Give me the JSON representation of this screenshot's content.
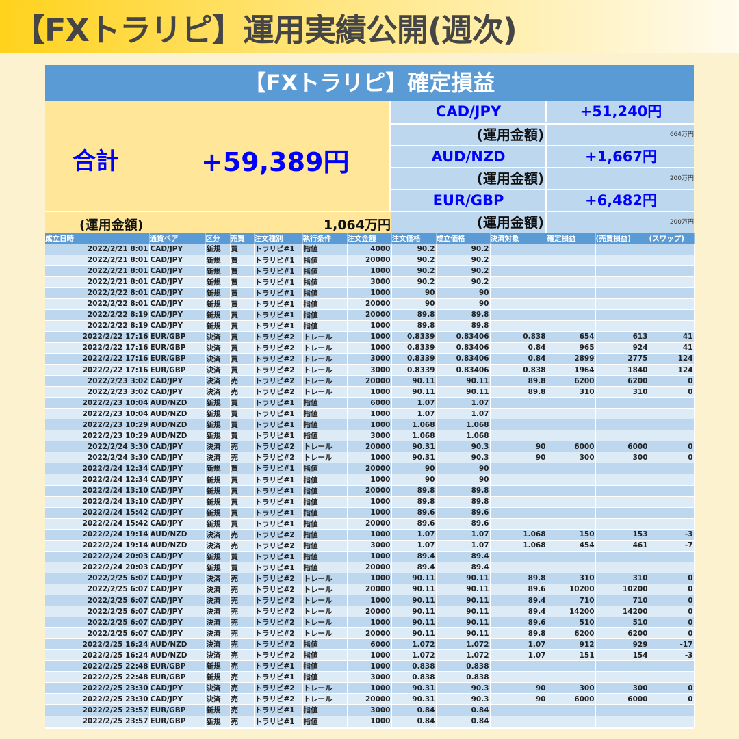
{
  "page_title": "【FXトラリピ】運用実績公開(週次)",
  "sheet": {
    "banner": "【FXトラリピ】確定損益",
    "total_label": "合計",
    "total_value": "+59,389円",
    "fund_label": "(運用金額)",
    "total_fund": "1,064万円",
    "pairs": [
      {
        "pair": "CAD/JPY",
        "profit": "+51,240円",
        "fund_label": "(運用金額)",
        "fund": "664万円"
      },
      {
        "pair": "AUD/NZD",
        "profit": "+1,667円",
        "fund_label": "(運用金額)",
        "fund": "200万円"
      },
      {
        "pair": "EUR/GBP",
        "profit": "+6,482円",
        "fund_label": "(運用金額)",
        "fund": "200万円"
      }
    ]
  },
  "table": {
    "headers": [
      "成立日時",
      "通貨ペア",
      "区分",
      "売買",
      "注文種別",
      "執行条件",
      "注文金額",
      "注文価格",
      "成立価格",
      "決済対象",
      "確定損益",
      "(売買損益)",
      "(スワップ)"
    ],
    "rows": [
      [
        "2022/2/21 8:01",
        "CAD/JPY",
        "新規",
        "買",
        "トラリピ#1",
        "指値",
        "4000",
        "90.2",
        "90.2",
        "",
        "",
        "",
        ""
      ],
      [
        "2022/2/21 8:01",
        "CAD/JPY",
        "新規",
        "買",
        "トラリピ#1",
        "指値",
        "20000",
        "90.2",
        "90.2",
        "",
        "",
        "",
        ""
      ],
      [
        "2022/2/21 8:01",
        "CAD/JPY",
        "新規",
        "買",
        "トラリピ#1",
        "指値",
        "1000",
        "90.2",
        "90.2",
        "",
        "",
        "",
        ""
      ],
      [
        "2022/2/21 8:01",
        "CAD/JPY",
        "新規",
        "買",
        "トラリピ#1",
        "指値",
        "3000",
        "90.2",
        "90.2",
        "",
        "",
        "",
        ""
      ],
      [
        "2022/2/22 8:01",
        "CAD/JPY",
        "新規",
        "買",
        "トラリピ#1",
        "指値",
        "1000",
        "90",
        "90",
        "",
        "",
        "",
        ""
      ],
      [
        "2022/2/22 8:01",
        "CAD/JPY",
        "新規",
        "買",
        "トラリピ#1",
        "指値",
        "20000",
        "90",
        "90",
        "",
        "",
        "",
        ""
      ],
      [
        "2022/2/22 8:19",
        "CAD/JPY",
        "新規",
        "買",
        "トラリピ#1",
        "指値",
        "20000",
        "89.8",
        "89.8",
        "",
        "",
        "",
        ""
      ],
      [
        "2022/2/22 8:19",
        "CAD/JPY",
        "新規",
        "買",
        "トラリピ#1",
        "指値",
        "1000",
        "89.8",
        "89.8",
        "",
        "",
        "",
        ""
      ],
      [
        "2022/2/22 17:16",
        "EUR/GBP",
        "決済",
        "買",
        "トラリピ#2",
        "トレール",
        "1000",
        "0.8339",
        "0.83406",
        "0.838",
        "654",
        "613",
        "41"
      ],
      [
        "2022/2/22 17:16",
        "EUR/GBP",
        "決済",
        "買",
        "トラリピ#2",
        "トレール",
        "1000",
        "0.8339",
        "0.83406",
        "0.84",
        "965",
        "924",
        "41"
      ],
      [
        "2022/2/22 17:16",
        "EUR/GBP",
        "決済",
        "買",
        "トラリピ#2",
        "トレール",
        "3000",
        "0.8339",
        "0.83406",
        "0.84",
        "2899",
        "2775",
        "124"
      ],
      [
        "2022/2/22 17:16",
        "EUR/GBP",
        "決済",
        "買",
        "トラリピ#2",
        "トレール",
        "3000",
        "0.8339",
        "0.83406",
        "0.838",
        "1964",
        "1840",
        "124"
      ],
      [
        "2022/2/23 3:02",
        "CAD/JPY",
        "決済",
        "売",
        "トラリピ#2",
        "トレール",
        "20000",
        "90.11",
        "90.11",
        "89.8",
        "6200",
        "6200",
        "0"
      ],
      [
        "2022/2/23 3:02",
        "CAD/JPY",
        "決済",
        "売",
        "トラリピ#2",
        "トレール",
        "1000",
        "90.11",
        "90.11",
        "89.8",
        "310",
        "310",
        "0"
      ],
      [
        "2022/2/23 10:04",
        "AUD/NZD",
        "新規",
        "買",
        "トラリピ#1",
        "指値",
        "6000",
        "1.07",
        "1.07",
        "",
        "",
        "",
        ""
      ],
      [
        "2022/2/23 10:04",
        "AUD/NZD",
        "新規",
        "買",
        "トラリピ#1",
        "指値",
        "1000",
        "1.07",
        "1.07",
        "",
        "",
        "",
        ""
      ],
      [
        "2022/2/23 10:29",
        "AUD/NZD",
        "新規",
        "買",
        "トラリピ#1",
        "指値",
        "1000",
        "1.068",
        "1.068",
        "",
        "",
        "",
        ""
      ],
      [
        "2022/2/23 10:29",
        "AUD/NZD",
        "新規",
        "買",
        "トラリピ#1",
        "指値",
        "3000",
        "1.068",
        "1.068",
        "",
        "",
        "",
        ""
      ],
      [
        "2022/2/24 3:30",
        "CAD/JPY",
        "決済",
        "売",
        "トラリピ#2",
        "トレール",
        "20000",
        "90.31",
        "90.3",
        "90",
        "6000",
        "6000",
        "0"
      ],
      [
        "2022/2/24 3:30",
        "CAD/JPY",
        "決済",
        "売",
        "トラリピ#2",
        "トレール",
        "1000",
        "90.31",
        "90.3",
        "90",
        "300",
        "300",
        "0"
      ],
      [
        "2022/2/24 12:34",
        "CAD/JPY",
        "新規",
        "買",
        "トラリピ#1",
        "指値",
        "20000",
        "90",
        "90",
        "",
        "",
        "",
        ""
      ],
      [
        "2022/2/24 12:34",
        "CAD/JPY",
        "新規",
        "買",
        "トラリピ#1",
        "指値",
        "1000",
        "90",
        "90",
        "",
        "",
        "",
        ""
      ],
      [
        "2022/2/24 13:10",
        "CAD/JPY",
        "新規",
        "買",
        "トラリピ#1",
        "指値",
        "20000",
        "89.8",
        "89.8",
        "",
        "",
        "",
        ""
      ],
      [
        "2022/2/24 13:10",
        "CAD/JPY",
        "新規",
        "買",
        "トラリピ#1",
        "指値",
        "1000",
        "89.8",
        "89.8",
        "",
        "",
        "",
        ""
      ],
      [
        "2022/2/24 15:42",
        "CAD/JPY",
        "新規",
        "買",
        "トラリピ#1",
        "指値",
        "1000",
        "89.6",
        "89.6",
        "",
        "",
        "",
        ""
      ],
      [
        "2022/2/24 15:42",
        "CAD/JPY",
        "新規",
        "買",
        "トラリピ#1",
        "指値",
        "20000",
        "89.6",
        "89.6",
        "",
        "",
        "",
        ""
      ],
      [
        "2022/2/24 19:14",
        "AUD/NZD",
        "決済",
        "売",
        "トラリピ#2",
        "指値",
        "1000",
        "1.07",
        "1.07",
        "1.068",
        "150",
        "153",
        "-3"
      ],
      [
        "2022/2/24 19:14",
        "AUD/NZD",
        "決済",
        "売",
        "トラリピ#2",
        "指値",
        "3000",
        "1.07",
        "1.07",
        "1.068",
        "454",
        "461",
        "-7"
      ],
      [
        "2022/2/24 20:03",
        "CAD/JPY",
        "新規",
        "買",
        "トラリピ#1",
        "指値",
        "1000",
        "89.4",
        "89.4",
        "",
        "",
        "",
        ""
      ],
      [
        "2022/2/24 20:03",
        "CAD/JPY",
        "新規",
        "買",
        "トラリピ#1",
        "指値",
        "20000",
        "89.4",
        "89.4",
        "",
        "",
        "",
        ""
      ],
      [
        "2022/2/25 6:07",
        "CAD/JPY",
        "決済",
        "売",
        "トラリピ#2",
        "トレール",
        "1000",
        "90.11",
        "90.11",
        "89.8",
        "310",
        "310",
        "0"
      ],
      [
        "2022/2/25 6:07",
        "CAD/JPY",
        "決済",
        "売",
        "トラリピ#2",
        "トレール",
        "20000",
        "90.11",
        "90.11",
        "89.6",
        "10200",
        "10200",
        "0"
      ],
      [
        "2022/2/25 6:07",
        "CAD/JPY",
        "決済",
        "売",
        "トラリピ#2",
        "トレール",
        "1000",
        "90.11",
        "90.11",
        "89.4",
        "710",
        "710",
        "0"
      ],
      [
        "2022/2/25 6:07",
        "CAD/JPY",
        "決済",
        "売",
        "トラリピ#2",
        "トレール",
        "20000",
        "90.11",
        "90.11",
        "89.4",
        "14200",
        "14200",
        "0"
      ],
      [
        "2022/2/25 6:07",
        "CAD/JPY",
        "決済",
        "売",
        "トラリピ#2",
        "トレール",
        "1000",
        "90.11",
        "90.11",
        "89.6",
        "510",
        "510",
        "0"
      ],
      [
        "2022/2/25 6:07",
        "CAD/JPY",
        "決済",
        "売",
        "トラリピ#2",
        "トレール",
        "20000",
        "90.11",
        "90.11",
        "89.8",
        "6200",
        "6200",
        "0"
      ],
      [
        "2022/2/25 16:24",
        "AUD/NZD",
        "決済",
        "売",
        "トラリピ#2",
        "指値",
        "6000",
        "1.072",
        "1.072",
        "1.07",
        "912",
        "929",
        "-17"
      ],
      [
        "2022/2/25 16:24",
        "AUD/NZD",
        "決済",
        "売",
        "トラリピ#2",
        "指値",
        "1000",
        "1.072",
        "1.072",
        "1.07",
        "151",
        "154",
        "-3"
      ],
      [
        "2022/2/25 22:48",
        "EUR/GBP",
        "新規",
        "売",
        "トラリピ#1",
        "指値",
        "1000",
        "0.838",
        "0.838",
        "",
        "",
        "",
        ""
      ],
      [
        "2022/2/25 22:48",
        "EUR/GBP",
        "新規",
        "売",
        "トラリピ#1",
        "指値",
        "3000",
        "0.838",
        "0.838",
        "",
        "",
        "",
        ""
      ],
      [
        "2022/2/25 23:30",
        "CAD/JPY",
        "決済",
        "売",
        "トラリピ#2",
        "トレール",
        "1000",
        "90.31",
        "90.3",
        "90",
        "300",
        "300",
        "0"
      ],
      [
        "2022/2/25 23:30",
        "CAD/JPY",
        "決済",
        "売",
        "トラリピ#2",
        "トレール",
        "20000",
        "90.31",
        "90.3",
        "90",
        "6000",
        "6000",
        "0"
      ],
      [
        "2022/2/25 23:57",
        "EUR/GBP",
        "新規",
        "売",
        "トラリピ#1",
        "指値",
        "3000",
        "0.84",
        "0.84",
        "",
        "",
        "",
        ""
      ],
      [
        "2022/2/25 23:57",
        "EUR/GBP",
        "新規",
        "売",
        "トラリピ#1",
        "指値",
        "1000",
        "0.84",
        "0.84",
        "",
        "",
        "",
        ""
      ]
    ]
  },
  "colors": {
    "header_blue": "#5b9bd5",
    "light_blue": "#bdd7ee",
    "lighter_blue": "#ddebf7",
    "total_yellow": "#ffe699",
    "accent_text": "#0000ff"
  }
}
